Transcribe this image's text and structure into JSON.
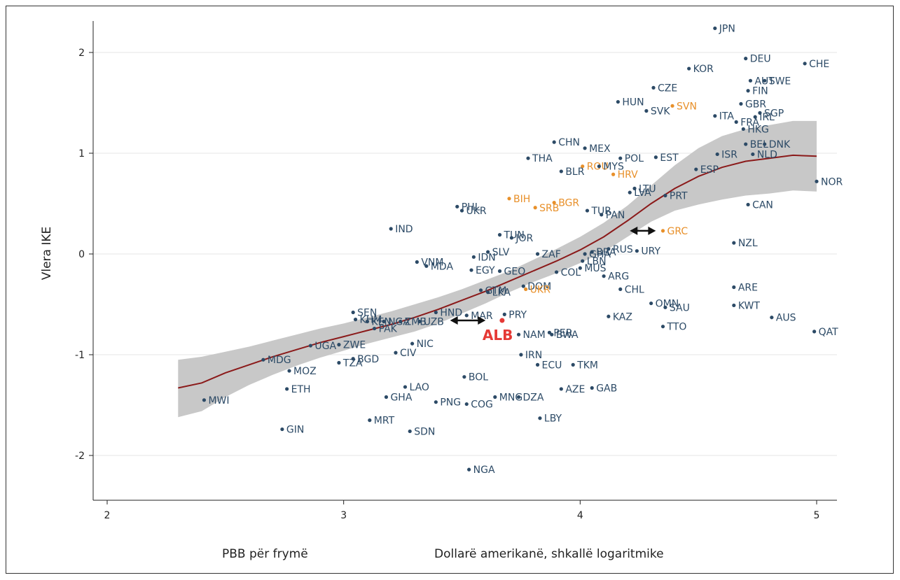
{
  "colors": {
    "normal": "#2c4a66",
    "highlight": "#e8902a",
    "focus": "#e53935",
    "fit_line": "#8b1a1a",
    "ci_band": "#c8c8c8",
    "grid": "#e6e6e6"
  },
  "chart_data": {
    "type": "scatter",
    "ylabel": "Vlera IKE",
    "xlabel_left": "PBB për frymë",
    "xlabel_right": "Dollarë amerikanë, shkallë logaritmike",
    "xlim": [
      2,
      5.05
    ],
    "ylim": [
      -2.35,
      2.32
    ],
    "x_ticks": [
      2,
      3,
      4,
      5
    ],
    "y_ticks": [
      -2,
      -1,
      0,
      1,
      2
    ],
    "x_tick_labels": [
      "2",
      "3",
      "4",
      "5"
    ],
    "y_tick_labels": [
      "-2",
      "-1",
      "0",
      "1",
      "2"
    ],
    "grid": true,
    "fit_line": {
      "x": [
        2.3,
        2.4,
        2.5,
        2.6,
        2.7,
        2.8,
        2.9,
        3.0,
        3.1,
        3.2,
        3.3,
        3.4,
        3.5,
        3.6,
        3.7,
        3.8,
        3.9,
        4.0,
        4.1,
        4.2,
        4.3,
        4.4,
        4.5,
        4.6,
        4.7,
        4.8,
        4.9,
        5.0
      ],
      "y": [
        -1.33,
        -1.28,
        -1.18,
        -1.1,
        -1.02,
        -0.95,
        -0.88,
        -0.82,
        -0.76,
        -0.7,
        -0.63,
        -0.55,
        -0.46,
        -0.37,
        -0.27,
        -0.17,
        -0.07,
        0.04,
        0.17,
        0.33,
        0.5,
        0.65,
        0.77,
        0.86,
        0.92,
        0.95,
        0.98,
        0.97
      ],
      "ci_upper": [
        -1.05,
        -1.02,
        -0.97,
        -0.92,
        -0.86,
        -0.8,
        -0.74,
        -0.69,
        -0.63,
        -0.57,
        -0.5,
        -0.43,
        -0.35,
        -0.26,
        -0.17,
        -0.06,
        0.05,
        0.17,
        0.31,
        0.48,
        0.68,
        0.88,
        1.05,
        1.17,
        1.24,
        1.28,
        1.32,
        1.32
      ],
      "ci_lower": [
        -1.62,
        -1.56,
        -1.42,
        -1.3,
        -1.2,
        -1.11,
        -1.03,
        -0.96,
        -0.89,
        -0.83,
        -0.77,
        -0.69,
        -0.59,
        -0.49,
        -0.38,
        -0.28,
        -0.19,
        -0.09,
        0.02,
        0.17,
        0.32,
        0.43,
        0.49,
        0.54,
        0.58,
        0.6,
        0.63,
        0.62
      ]
    },
    "arrows": [
      {
        "x_from": 3.45,
        "x_to": 3.6,
        "y": -0.66
      },
      {
        "x_from": 4.21,
        "x_to": 4.32,
        "y": 0.23
      }
    ],
    "points": [
      {
        "label": "JPN",
        "x": 4.57,
        "y": 2.24,
        "group": "normal"
      },
      {
        "label": "DEU",
        "x": 4.7,
        "y": 1.94,
        "group": "normal"
      },
      {
        "label": "CHE",
        "x": 4.95,
        "y": 1.89,
        "group": "normal"
      },
      {
        "label": "KOR",
        "x": 4.46,
        "y": 1.84,
        "group": "normal"
      },
      {
        "label": "AUT",
        "x": 4.72,
        "y": 1.72,
        "group": "normal"
      },
      {
        "label": "SWE",
        "x": 4.78,
        "y": 1.72,
        "group": "normal"
      },
      {
        "label": "CZE",
        "x": 4.31,
        "y": 1.65,
        "group": "normal"
      },
      {
        "label": "FIN",
        "x": 4.71,
        "y": 1.62,
        "group": "normal"
      },
      {
        "label": "HUN",
        "x": 4.16,
        "y": 1.51,
        "group": "normal"
      },
      {
        "label": "GBR",
        "x": 4.68,
        "y": 1.49,
        "group": "normal"
      },
      {
        "label": "SVN",
        "x": 4.39,
        "y": 1.47,
        "group": "highlight"
      },
      {
        "label": "SVK",
        "x": 4.28,
        "y": 1.42,
        "group": "normal"
      },
      {
        "label": "SGP",
        "x": 4.76,
        "y": 1.4,
        "group": "normal"
      },
      {
        "label": "ITA",
        "x": 4.57,
        "y": 1.37,
        "group": "normal"
      },
      {
        "label": "IRL",
        "x": 4.74,
        "y": 1.36,
        "group": "normal"
      },
      {
        "label": "FRA",
        "x": 4.66,
        "y": 1.31,
        "group": "normal"
      },
      {
        "label": "HKG",
        "x": 4.69,
        "y": 1.24,
        "group": "normal"
      },
      {
        "label": "CHN",
        "x": 3.89,
        "y": 1.11,
        "group": "normal"
      },
      {
        "label": "BEL",
        "x": 4.7,
        "y": 1.09,
        "group": "normal"
      },
      {
        "label": "DNK",
        "x": 4.78,
        "y": 1.09,
        "group": "normal"
      },
      {
        "label": "MEX",
        "x": 4.02,
        "y": 1.05,
        "group": "normal"
      },
      {
        "label": "ISR",
        "x": 4.58,
        "y": 0.99,
        "group": "normal"
      },
      {
        "label": "NLD",
        "x": 4.73,
        "y": 0.99,
        "group": "normal"
      },
      {
        "label": "THA",
        "x": 3.78,
        "y": 0.95,
        "group": "normal"
      },
      {
        "label": "POL",
        "x": 4.17,
        "y": 0.95,
        "group": "normal"
      },
      {
        "label": "EST",
        "x": 4.32,
        "y": 0.96,
        "group": "normal"
      },
      {
        "label": "ROU",
        "x": 4.01,
        "y": 0.87,
        "group": "highlight"
      },
      {
        "label": "MYS",
        "x": 4.08,
        "y": 0.87,
        "group": "normal"
      },
      {
        "label": "ESP",
        "x": 4.49,
        "y": 0.84,
        "group": "normal"
      },
      {
        "label": "BLR",
        "x": 3.92,
        "y": 0.82,
        "group": "normal"
      },
      {
        "label": "HRV",
        "x": 4.14,
        "y": 0.79,
        "group": "highlight"
      },
      {
        "label": "NOR",
        "x": 5.0,
        "y": 0.72,
        "group": "normal"
      },
      {
        "label": "LTU",
        "x": 4.23,
        "y": 0.65,
        "group": "normal"
      },
      {
        "label": "LVA",
        "x": 4.21,
        "y": 0.61,
        "group": "normal"
      },
      {
        "label": "PRT",
        "x": 4.36,
        "y": 0.58,
        "group": "normal"
      },
      {
        "label": "BIH",
        "x": 3.7,
        "y": 0.55,
        "group": "highlight"
      },
      {
        "label": "BGR",
        "x": 3.89,
        "y": 0.51,
        "group": "highlight"
      },
      {
        "label": "CAN",
        "x": 4.71,
        "y": 0.49,
        "group": "normal"
      },
      {
        "label": "PHL",
        "x": 3.48,
        "y": 0.47,
        "group": "normal"
      },
      {
        "label": "SRB",
        "x": 3.81,
        "y": 0.46,
        "group": "highlight"
      },
      {
        "label": "UKR",
        "x": 3.5,
        "y": 0.43,
        "group": "normal"
      },
      {
        "label": "TUR",
        "x": 4.03,
        "y": 0.43,
        "group": "normal"
      },
      {
        "label": "PAN",
        "x": 4.09,
        "y": 0.39,
        "group": "normal"
      },
      {
        "label": "IND",
        "x": 3.2,
        "y": 0.25,
        "group": "normal"
      },
      {
        "label": "GRC",
        "x": 4.35,
        "y": 0.23,
        "group": "highlight"
      },
      {
        "label": "TUN",
        "x": 3.66,
        "y": 0.19,
        "group": "normal"
      },
      {
        "label": "JOR",
        "x": 3.71,
        "y": 0.16,
        "group": "normal"
      },
      {
        "label": "NZL",
        "x": 4.65,
        "y": 0.11,
        "group": "normal"
      },
      {
        "label": "BRA",
        "x": 4.05,
        "y": 0.02,
        "group": "normal"
      },
      {
        "label": "RUS",
        "x": 4.12,
        "y": 0.05,
        "group": "normal"
      },
      {
        "label": "URY",
        "x": 4.24,
        "y": 0.03,
        "group": "normal"
      },
      {
        "label": "SLV",
        "x": 3.61,
        "y": 0.02,
        "group": "normal"
      },
      {
        "label": "ZAF",
        "x": 3.82,
        "y": 0.0,
        "group": "normal"
      },
      {
        "label": "GHA",
        "x": 4.02,
        "y": 0.0,
        "group": "normal"
      },
      {
        "label": "IDN",
        "x": 3.55,
        "y": -0.03,
        "group": "normal"
      },
      {
        "label": "LBN",
        "x": 4.01,
        "y": -0.07,
        "group": "normal"
      },
      {
        "label": "VNM",
        "x": 3.31,
        "y": -0.08,
        "group": "normal"
      },
      {
        "label": "MDA",
        "x": 3.35,
        "y": -0.12,
        "group": "normal"
      },
      {
        "label": "MUS",
        "x": 4.0,
        "y": -0.14,
        "group": "normal"
      },
      {
        "label": "EGY",
        "x": 3.54,
        "y": -0.16,
        "group": "normal"
      },
      {
        "label": "GEO",
        "x": 3.66,
        "y": -0.17,
        "group": "normal"
      },
      {
        "label": "COL",
        "x": 3.9,
        "y": -0.18,
        "group": "normal"
      },
      {
        "label": "ARG",
        "x": 4.1,
        "y": -0.22,
        "group": "normal"
      },
      {
        "label": "ARE",
        "x": 4.65,
        "y": -0.33,
        "group": "normal"
      },
      {
        "label": "DOM",
        "x": 3.76,
        "y": -0.32,
        "group": "normal"
      },
      {
        "label": "UKR",
        "x": 3.77,
        "y": -0.35,
        "group": "highlight"
      },
      {
        "label": "GTM",
        "x": 3.58,
        "y": -0.36,
        "group": "normal"
      },
      {
        "label": "LKA",
        "x": 3.61,
        "y": -0.38,
        "group": "normal"
      },
      {
        "label": "CHL",
        "x": 4.17,
        "y": -0.35,
        "group": "normal"
      },
      {
        "label": "OMN",
        "x": 4.3,
        "y": -0.49,
        "group": "normal"
      },
      {
        "label": "KWT",
        "x": 4.65,
        "y": -0.51,
        "group": "normal"
      },
      {
        "label": "SAU",
        "x": 4.36,
        "y": -0.53,
        "group": "normal"
      },
      {
        "label": "SEN",
        "x": 3.04,
        "y": -0.58,
        "group": "normal"
      },
      {
        "label": "HND",
        "x": 3.39,
        "y": -0.58,
        "group": "normal"
      },
      {
        "label": "MAR",
        "x": 3.52,
        "y": -0.61,
        "group": "normal"
      },
      {
        "label": "PRY",
        "x": 3.68,
        "y": -0.6,
        "group": "normal"
      },
      {
        "label": "AUS",
        "x": 4.81,
        "y": -0.63,
        "group": "normal"
      },
      {
        "label": "KAZ",
        "x": 4.12,
        "y": -0.62,
        "group": "normal"
      },
      {
        "label": "KHM",
        "x": 3.05,
        "y": -0.65,
        "group": "normal"
      },
      {
        "label": "KEN",
        "x": 3.1,
        "y": -0.67,
        "group": "normal"
      },
      {
        "label": "NGA",
        "x": 3.17,
        "y": -0.67,
        "group": "normal"
      },
      {
        "label": "ZMB",
        "x": 3.24,
        "y": -0.67,
        "group": "normal"
      },
      {
        "label": "UZB",
        "x": 3.32,
        "y": -0.67,
        "group": "normal"
      },
      {
        "label": "TTO",
        "x": 4.35,
        "y": -0.72,
        "group": "normal"
      },
      {
        "label": "PAK",
        "x": 3.13,
        "y": -0.74,
        "group": "normal"
      },
      {
        "label": "ALB",
        "x": 3.67,
        "y": -0.66,
        "group": "focus"
      },
      {
        "label": "QAT",
        "x": 4.99,
        "y": -0.77,
        "group": "normal"
      },
      {
        "label": "PER",
        "x": 3.87,
        "y": -0.78,
        "group": "normal"
      },
      {
        "label": "NAM",
        "x": 3.74,
        "y": -0.8,
        "group": "normal"
      },
      {
        "label": "BWA",
        "x": 3.88,
        "y": -0.8,
        "group": "normal"
      },
      {
        "label": "NIC",
        "x": 3.29,
        "y": -0.89,
        "group": "normal"
      },
      {
        "label": "UGA",
        "x": 2.86,
        "y": -0.91,
        "group": "normal"
      },
      {
        "label": "ZWE",
        "x": 2.98,
        "y": -0.9,
        "group": "normal"
      },
      {
        "label": "CIV",
        "x": 3.22,
        "y": -0.98,
        "group": "normal"
      },
      {
        "label": "IRN",
        "x": 3.75,
        "y": -1.0,
        "group": "normal"
      },
      {
        "label": "MDG",
        "x": 2.66,
        "y": -1.05,
        "group": "normal"
      },
      {
        "label": "BGD",
        "x": 3.04,
        "y": -1.04,
        "group": "normal"
      },
      {
        "label": "TZA",
        "x": 2.98,
        "y": -1.08,
        "group": "normal"
      },
      {
        "label": "ECU",
        "x": 3.82,
        "y": -1.1,
        "group": "normal"
      },
      {
        "label": "TKM",
        "x": 3.97,
        "y": -1.1,
        "group": "normal"
      },
      {
        "label": "MOZ",
        "x": 2.77,
        "y": -1.16,
        "group": "normal"
      },
      {
        "label": "BOL",
        "x": 3.51,
        "y": -1.22,
        "group": "normal"
      },
      {
        "label": "LAO",
        "x": 3.26,
        "y": -1.32,
        "group": "normal"
      },
      {
        "label": "ETH",
        "x": 2.76,
        "y": -1.34,
        "group": "normal"
      },
      {
        "label": "AZE",
        "x": 3.92,
        "y": -1.34,
        "group": "normal"
      },
      {
        "label": "GAB",
        "x": 4.05,
        "y": -1.33,
        "group": "normal"
      },
      {
        "label": "GHA",
        "x": 3.18,
        "y": -1.42,
        "group": "normal"
      },
      {
        "label": "MNG",
        "x": 3.64,
        "y": -1.42,
        "group": "normal"
      },
      {
        "label": "DZA",
        "x": 3.74,
        "y": -1.42,
        "group": "normal"
      },
      {
        "label": "PNG",
        "x": 3.39,
        "y": -1.47,
        "group": "normal"
      },
      {
        "label": "COG",
        "x": 3.52,
        "y": -1.49,
        "group": "normal"
      },
      {
        "label": "MWI",
        "x": 2.41,
        "y": -1.45,
        "group": "normal"
      },
      {
        "label": "MRT",
        "x": 3.11,
        "y": -1.65,
        "group": "normal"
      },
      {
        "label": "LBY",
        "x": 3.83,
        "y": -1.63,
        "group": "normal"
      },
      {
        "label": "GIN",
        "x": 2.74,
        "y": -1.74,
        "group": "normal"
      },
      {
        "label": "SDN",
        "x": 3.28,
        "y": -1.76,
        "group": "normal"
      },
      {
        "label": "NGA",
        "x": 3.53,
        "y": -2.14,
        "group": "normal"
      }
    ]
  }
}
